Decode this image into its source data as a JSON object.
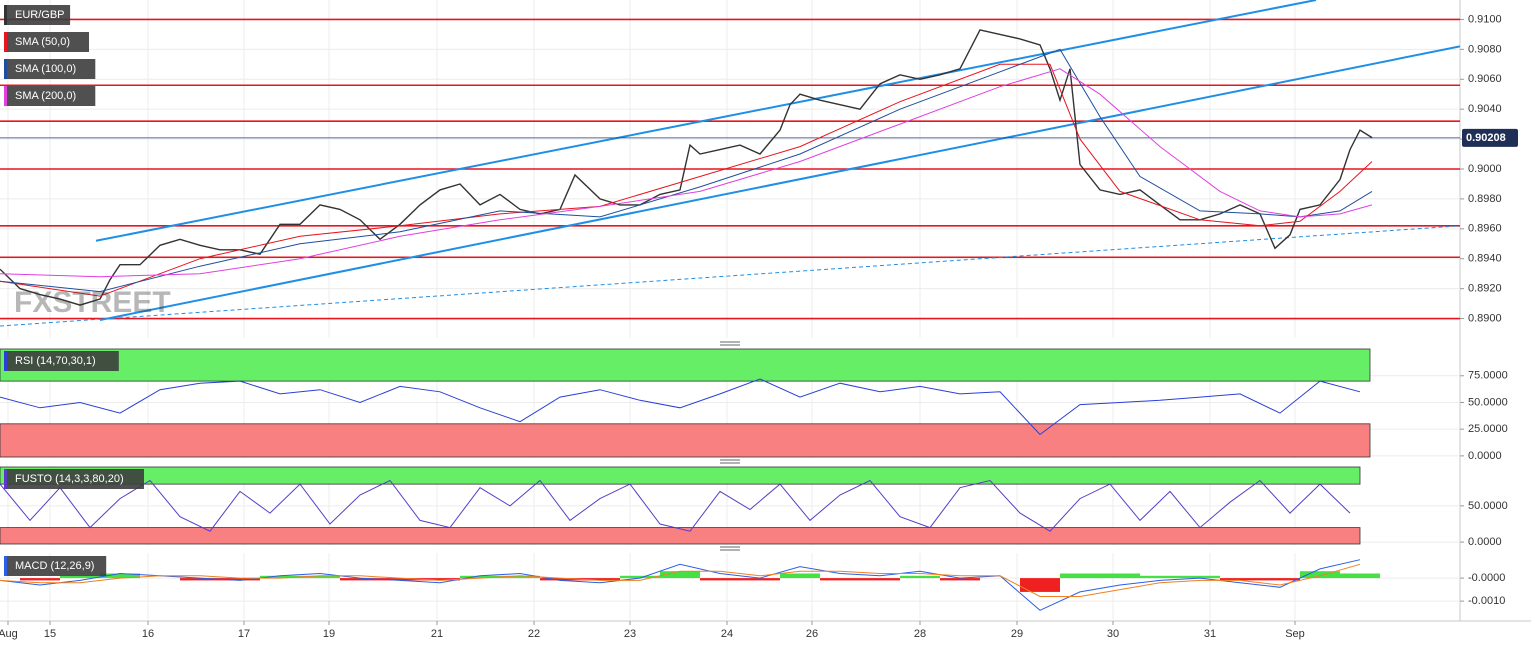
{
  "chart_data": [
    {
      "type": "line",
      "xlim": [
        0,
        146
      ],
      "ylim": [
        0.8887,
        0.9113
      ],
      "yticks": [
        {
          "value": 0.89,
          "label": "0.8900"
        },
        {
          "value": 0.892,
          "label": "0.8920"
        },
        {
          "value": 0.894,
          "label": "0.8940"
        },
        {
          "value": 0.896,
          "label": "0.8960"
        },
        {
          "value": 0.898,
          "label": "0.8980"
        },
        {
          "value": 0.9,
          "label": "0.9000"
        },
        {
          "value": 0.902,
          "label": "0.9020"
        },
        {
          "value": 0.904,
          "label": "0.9040"
        },
        {
          "value": 0.906,
          "label": "0.9060"
        },
        {
          "value": 0.908,
          "label": "0.9080"
        },
        {
          "value": 0.91,
          "label": "0.9100"
        }
      ],
      "watermark": "FXSTREET",
      "last_price": 0.90208,
      "levels": [
        0.91,
        0.9056,
        0.9032,
        0.9,
        0.8962,
        0.8941,
        0.89
      ],
      "level_color": "#e8141e",
      "trendlines": [
        {
          "x": [
            9.6,
            131.6
          ],
          "values": [
            0.8952,
            0.9113
          ],
          "color": "#1e8fe6"
        },
        {
          "x": [
            10,
            146
          ],
          "values": [
            0.8899,
            0.9082
          ],
          "color": "#1e8fe6"
        },
        {
          "x": [
            0,
            146
          ],
          "values": [
            0.8895,
            0.8962
          ],
          "color": "#1e8fe6",
          "dashed": true
        }
      ],
      "series": [
        {
          "name": "EUR/GBP",
          "color": "#333333",
          "x": [
            0,
            2,
            4,
            6,
            8,
            10,
            11,
            12,
            14,
            16,
            18,
            20,
            22,
            24,
            26,
            28,
            30,
            32,
            34,
            36,
            38,
            40,
            42,
            44,
            46,
            48,
            50,
            52,
            54,
            56,
            57.5,
            60,
            62,
            64,
            66,
            68,
            69,
            70,
            72,
            74,
            76,
            78,
            79,
            80,
            82,
            84,
            86,
            88,
            90,
            92,
            94,
            96,
            98,
            100,
            102,
            104,
            105,
            106,
            107,
            108,
            110,
            112,
            114,
            116,
            118,
            120,
            122,
            124,
            126,
            127.5,
            129,
            130,
            132,
            134,
            135,
            136,
            137.2
          ],
          "values": [
            0.8933,
            0.892,
            0.8916,
            0.8913,
            0.8909,
            0.8913,
            0.8926,
            0.8936,
            0.8936,
            0.8949,
            0.8953,
            0.8949,
            0.8946,
            0.8946,
            0.8943,
            0.8963,
            0.8963,
            0.8976,
            0.8973,
            0.8966,
            0.8953,
            0.8963,
            0.8976,
            0.8986,
            0.899,
            0.8976,
            0.8983,
            0.8973,
            0.897,
            0.8973,
            0.8996,
            0.898,
            0.8976,
            0.8976,
            0.8983,
            0.8986,
            0.9016,
            0.901,
            0.9013,
            0.9016,
            0.901,
            0.9026,
            0.9043,
            0.905,
            0.9046,
            0.9043,
            0.904,
            0.9057,
            0.9063,
            0.906,
            0.9063,
            0.9067,
            0.9093,
            0.909,
            0.9087,
            0.9083,
            0.9067,
            0.9046,
            0.9067,
            0.9003,
            0.8986,
            0.8983,
            0.8986,
            0.8976,
            0.8966,
            0.8966,
            0.897,
            0.8976,
            0.897,
            0.8947,
            0.8956,
            0.8973,
            0.8976,
            0.8993,
            0.9013,
            0.9026,
            0.9021
          ]
        },
        {
          "name": "SMA (50,0)",
          "color": "#e8141e",
          "x": [
            0,
            10,
            20,
            30,
            40,
            50,
            60,
            70,
            80,
            90,
            100,
            105,
            108,
            112,
            120,
            126,
            130,
            134,
            137.2
          ],
          "values": [
            0.8925,
            0.8915,
            0.894,
            0.8955,
            0.8962,
            0.897,
            0.8975,
            0.8995,
            0.9015,
            0.9045,
            0.907,
            0.907,
            0.902,
            0.8985,
            0.8966,
            0.8962,
            0.8965,
            0.8985,
            0.9005
          ]
        },
        {
          "name": "SMA (100,0)",
          "color": "#1f4e9c",
          "x": [
            0,
            10,
            20,
            30,
            40,
            50,
            60,
            70,
            80,
            90,
            100,
            106,
            110,
            114,
            120,
            126,
            130,
            134,
            137.2
          ],
          "values": [
            0.8925,
            0.8918,
            0.8935,
            0.895,
            0.8958,
            0.8972,
            0.8968,
            0.8988,
            0.901,
            0.904,
            0.9065,
            0.908,
            0.9035,
            0.8995,
            0.8972,
            0.897,
            0.8968,
            0.8972,
            0.8985
          ]
        },
        {
          "name": "SMA (200,0)",
          "color": "#e040e0",
          "x": [
            0,
            10,
            20,
            30,
            40,
            50,
            60,
            70,
            80,
            90,
            100,
            106,
            110,
            116,
            122,
            126,
            130,
            134,
            137.2
          ],
          "values": [
            0.893,
            0.8928,
            0.893,
            0.894,
            0.8955,
            0.8966,
            0.8975,
            0.8985,
            0.9005,
            0.903,
            0.9055,
            0.9067,
            0.905,
            0.9015,
            0.8985,
            0.8972,
            0.8968,
            0.897,
            0.8976
          ]
        }
      ]
    },
    {
      "type": "line",
      "title": "RSI (14,70,30,1)",
      "xlim": [
        0,
        146
      ],
      "ylim": [
        -2,
        101
      ],
      "yticks": [
        {
          "value": 0,
          "label": "0.0000"
        },
        {
          "value": 25,
          "label": "25.0000"
        },
        {
          "value": 50,
          "label": "50.0000"
        },
        {
          "value": 75,
          "label": "75.0000"
        }
      ],
      "upper": 70,
      "lower": 30,
      "upper_color": "#66ee66",
      "lower_color": "#f88080",
      "x": [
        0,
        4,
        8,
        12,
        16,
        20,
        24,
        28,
        32,
        36,
        40,
        44,
        48,
        52,
        56,
        60,
        64,
        68,
        72,
        76,
        80,
        84,
        88,
        92,
        96,
        100,
        104,
        108,
        112,
        116,
        120,
        124,
        128,
        132,
        136
      ],
      "series": [
        {
          "color": "#2a3fd6",
          "values": [
            55,
            45,
            50,
            40,
            62,
            68,
            70,
            58,
            62,
            50,
            65,
            60,
            45,
            32,
            55,
            62,
            52,
            45,
            58,
            72,
            55,
            68,
            60,
            65,
            58,
            60,
            20,
            48,
            50,
            52,
            55,
            58,
            40,
            70,
            60
          ]
        }
      ]
    },
    {
      "type": "line",
      "title": "FUSTO (14,3,3,80,20)",
      "xlim": [
        0,
        146
      ],
      "ylim": [
        -4,
        105
      ],
      "yticks": [
        {
          "value": 0,
          "label": "0.0000"
        },
        {
          "value": 50,
          "label": "50.0000"
        }
      ],
      "upper": 80,
      "lower": 20,
      "upper_color": "#66ee66",
      "lower_color": "#f88080",
      "x": [
        0,
        3,
        6,
        9,
        12,
        15,
        18,
        21,
        24,
        27,
        30,
        33,
        36,
        39,
        42,
        45,
        48,
        51,
        54,
        57,
        60,
        63,
        66,
        69,
        72,
        75,
        78,
        81,
        84,
        87,
        90,
        93,
        96,
        99,
        102,
        105,
        108,
        111,
        114,
        117,
        120,
        123,
        126,
        129,
        132,
        135
      ],
      "series": [
        {
          "color": "#5a3cc8",
          "values": [
            80,
            30,
            75,
            20,
            60,
            85,
            35,
            15,
            70,
            40,
            80,
            25,
            65,
            85,
            30,
            20,
            75,
            50,
            85,
            30,
            60,
            80,
            25,
            15,
            70,
            45,
            80,
            30,
            65,
            85,
            35,
            20,
            75,
            85,
            40,
            15,
            60,
            80,
            30,
            70,
            20,
            55,
            85,
            40,
            80,
            40
          ]
        }
      ]
    },
    {
      "type": "line",
      "title": "MACD (12,26,9)",
      "xlim": [
        0,
        146
      ],
      "ylim": [
        -0.00182,
        0.00109
      ],
      "yticks": [
        {
          "value": -0.001,
          "label": "-0.0010"
        },
        {
          "value": 0,
          "label": "-0.0000"
        }
      ],
      "xticks": [
        {
          "value": 0.8,
          "label": "Aug"
        },
        {
          "value": 5,
          "label": "15"
        },
        {
          "value": 14.8,
          "label": "16"
        },
        {
          "value": 24.4,
          "label": "17"
        },
        {
          "value": 32.9,
          "label": "19"
        },
        {
          "value": 43.7,
          "label": "21"
        },
        {
          "value": 53.4,
          "label": "22"
        },
        {
          "value": 63,
          "label": "23"
        },
        {
          "value": 72.7,
          "label": "24"
        },
        {
          "value": 81.2,
          "label": "26"
        },
        {
          "value": 92,
          "label": "28"
        },
        {
          "value": 101.7,
          "label": "29"
        },
        {
          "value": 111.3,
          "label": "30"
        },
        {
          "value": 121,
          "label": "31"
        },
        {
          "value": 129.5,
          "label": "Sep"
        }
      ],
      "x": [
        0,
        4,
        8,
        12,
        16,
        20,
        24,
        28,
        32,
        36,
        40,
        44,
        48,
        52,
        56,
        60,
        64,
        68,
        72,
        76,
        80,
        84,
        88,
        92,
        96,
        100,
        104,
        108,
        112,
        116,
        120,
        124,
        128,
        132,
        136
      ],
      "histogram": {
        "up_color": "#44e044",
        "down_color": "#ee2020",
        "values": [
          0,
          -0.0001,
          0.0001,
          0.0002,
          0,
          -0.0001,
          -0.0001,
          0.0001,
          0.0001,
          -0.0001,
          -0.0001,
          -0.0001,
          0.0001,
          0.0001,
          -0.0001,
          -0.0001,
          0.0001,
          0.0003,
          -0.0001,
          -0.0001,
          0.0002,
          -0.0001,
          -0.0001,
          0.0001,
          -0.0001,
          0,
          -0.0006,
          0.0002,
          0.0002,
          0.0001,
          0.0001,
          -0.0001,
          -0.0001,
          0.0003,
          0.0002
        ]
      },
      "series": [
        {
          "color": "#2a5fe6",
          "values": [
            -0.0001,
            -0.0003,
            -0.0001,
            0.0002,
            0.0001,
            0,
            -0.0001,
            0.0001,
            0.0002,
            0,
            -0.0001,
            -0.0002,
            0.0001,
            0.0002,
            -0.0001,
            -0.0002,
            0,
            0.0006,
            0.0002,
            0,
            0.0005,
            0.0002,
            0.0001,
            0.0003,
            0,
            0.0001,
            -0.0014,
            -0.0006,
            -0.0003,
            -0.0001,
            0,
            -0.0002,
            -0.0004,
            0.0004,
            0.0008
          ]
        },
        {
          "color": "#f08020",
          "values": [
            -0.0001,
            -0.0002,
            -0.0002,
            0,
            0.0001,
            0.0001,
            0,
            0,
            0.0001,
            0.0001,
            0,
            -0.0001,
            0,
            0.0001,
            0,
            -0.0001,
            -0.0001,
            0.0003,
            0.0003,
            0.0001,
            0.0003,
            0.0003,
            0.0002,
            0.0002,
            0.0001,
            0.0001,
            -0.0008,
            -0.0008,
            -0.0005,
            -0.0002,
            -0.0001,
            -0.0001,
            -0.0003,
            0.0001,
            0.0006
          ]
        }
      ]
    }
  ]
}
